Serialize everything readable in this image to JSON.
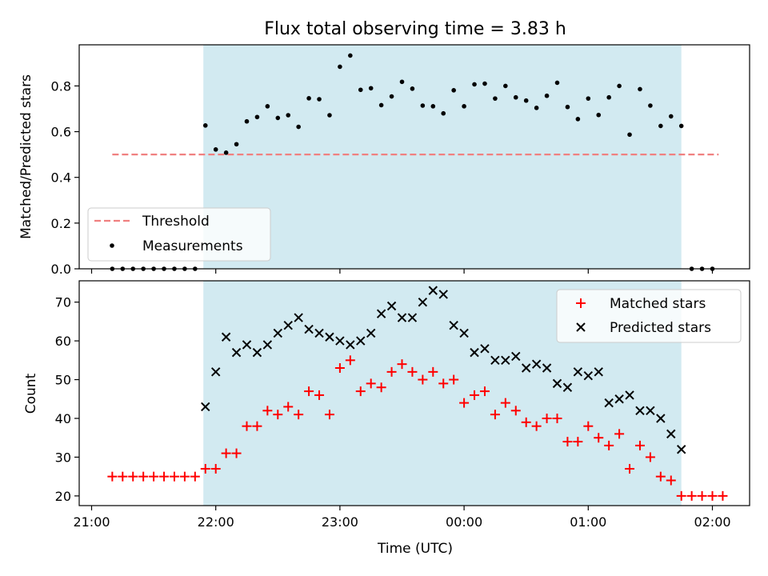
{
  "chart_data": [
    {
      "type": "scatter",
      "title": "Flux total observing time = 3.83 h",
      "xlabel": "",
      "ylabel": "Matched/Predicted stars",
      "ylim": [
        0,
        0.98
      ],
      "yticks": [
        "0.0",
        "0.2",
        "0.4",
        "0.6",
        "0.8"
      ],
      "legend_location": "lower-left",
      "shaded_interval": [
        "21:54",
        "01:45"
      ],
      "shade_color": "#d2eaf1",
      "series": [
        {
          "name": "Threshold",
          "type": "line",
          "style": "dashed",
          "color": "#f08080",
          "x": [
            "21:10",
            "02:03"
          ],
          "y": [
            0.5,
            0.5
          ]
        },
        {
          "name": "Measurements",
          "type": "scatter",
          "color": "#000000",
          "x": [
            "21:10",
            "21:15",
            "21:20",
            "21:25",
            "21:30",
            "21:35",
            "21:40",
            "21:45",
            "21:50",
            "21:55",
            "22:00",
            "22:05",
            "22:10",
            "22:15",
            "22:20",
            "22:25",
            "22:30",
            "22:35",
            "22:40",
            "22:45",
            "22:50",
            "22:55",
            "23:00",
            "23:05",
            "23:10",
            "23:15",
            "23:20",
            "23:25",
            "23:30",
            "23:35",
            "23:40",
            "23:45",
            "23:50",
            "23:55",
            "00:00",
            "00:05",
            "00:10",
            "00:15",
            "00:20",
            "00:25",
            "00:30",
            "00:35",
            "00:40",
            "00:45",
            "00:50",
            "00:55",
            "01:00",
            "01:05",
            "01:10",
            "01:15",
            "01:20",
            "01:25",
            "01:30",
            "01:35",
            "01:40",
            "01:45",
            "01:50",
            "01:55",
            "02:00"
          ],
          "y": [
            0,
            0,
            0,
            0,
            0,
            0,
            0,
            0,
            0,
            0.627,
            0.522,
            0.508,
            0.545,
            0.645,
            0.664,
            0.711,
            0.66,
            0.672,
            0.621,
            0.746,
            0.742,
            0.672,
            0.884,
            0.933,
            0.783,
            0.79,
            0.716,
            0.754,
            0.818,
            0.788,
            0.714,
            0.711,
            0.68,
            0.781,
            0.711,
            0.807,
            0.81,
            0.745,
            0.8,
            0.75,
            0.736,
            0.704,
            0.757,
            0.814,
            0.708,
            0.655,
            0.745,
            0.673,
            0.75,
            0.8,
            0.587,
            0.786,
            0.714,
            0.625,
            0.667,
            0.625,
            0,
            0,
            0
          ]
        }
      ]
    },
    {
      "type": "scatter",
      "title": "",
      "xlabel": "Time (UTC)",
      "ylabel": "Count",
      "ylim": [
        17.5,
        75.5
      ],
      "yticks": [
        "20",
        "30",
        "40",
        "50",
        "60",
        "70"
      ],
      "xticks": [
        "21:00",
        "22:00",
        "23:00",
        "00:00",
        "01:00",
        "02:00"
      ],
      "legend_location": "top-right",
      "shaded_interval": [
        "21:54",
        "01:45"
      ],
      "series": [
        {
          "name": "Matched stars",
          "marker": "plus",
          "color": "#ff0000",
          "x": [
            "21:10",
            "21:15",
            "21:20",
            "21:25",
            "21:30",
            "21:35",
            "21:40",
            "21:45",
            "21:50",
            "21:55",
            "22:00",
            "22:05",
            "22:10",
            "22:15",
            "22:20",
            "22:25",
            "22:30",
            "22:35",
            "22:40",
            "22:45",
            "22:50",
            "22:55",
            "23:00",
            "23:05",
            "23:10",
            "23:15",
            "23:20",
            "23:25",
            "23:30",
            "23:35",
            "23:40",
            "23:45",
            "23:50",
            "23:55",
            "00:00",
            "00:05",
            "00:10",
            "00:15",
            "00:20",
            "00:25",
            "00:30",
            "00:35",
            "00:40",
            "00:45",
            "00:50",
            "00:55",
            "01:00",
            "01:05",
            "01:10",
            "01:15",
            "01:20",
            "01:25",
            "01:30",
            "01:35",
            "01:40",
            "01:45",
            "01:50",
            "01:55",
            "02:00",
            "02:05"
          ],
          "y": [
            25,
            25,
            25,
            25,
            25,
            25,
            25,
            25,
            25,
            27,
            27,
            31,
            31,
            38,
            38,
            42,
            41,
            43,
            41,
            47,
            46,
            41,
            53,
            55,
            47,
            49,
            48,
            52,
            54,
            52,
            50,
            52,
            49,
            50,
            44,
            46,
            47,
            41,
            44,
            42,
            39,
            38,
            40,
            40,
            34,
            34,
            38,
            35,
            33,
            36,
            27,
            33,
            30,
            25,
            24,
            20,
            20,
            20,
            20,
            20
          ]
        },
        {
          "name": "Predicted stars",
          "marker": "x",
          "color": "#000000",
          "x": [
            "21:55",
            "22:00",
            "22:05",
            "22:10",
            "22:15",
            "22:20",
            "22:25",
            "22:30",
            "22:35",
            "22:40",
            "22:45",
            "22:50",
            "22:55",
            "23:00",
            "23:05",
            "23:10",
            "23:15",
            "23:20",
            "23:25",
            "23:30",
            "23:35",
            "23:40",
            "23:45",
            "23:50",
            "23:55",
            "00:00",
            "00:05",
            "00:10",
            "00:15",
            "00:20",
            "00:25",
            "00:30",
            "00:35",
            "00:40",
            "00:45",
            "00:50",
            "00:55",
            "01:00",
            "01:05",
            "01:10",
            "01:15",
            "01:20",
            "01:25",
            "01:30",
            "01:35",
            "01:40",
            "01:45"
          ],
          "y": [
            43,
            52,
            61,
            57,
            59,
            57,
            59,
            62,
            64,
            66,
            63,
            62,
            61,
            60,
            59,
            60,
            62,
            67,
            69,
            66,
            66,
            70,
            73,
            72,
            64,
            62,
            57,
            58,
            55,
            55,
            56,
            53,
            54,
            53,
            49,
            48,
            52,
            51,
            52,
            44,
            45,
            46,
            42,
            42,
            40,
            36,
            32
          ]
        }
      ]
    }
  ]
}
